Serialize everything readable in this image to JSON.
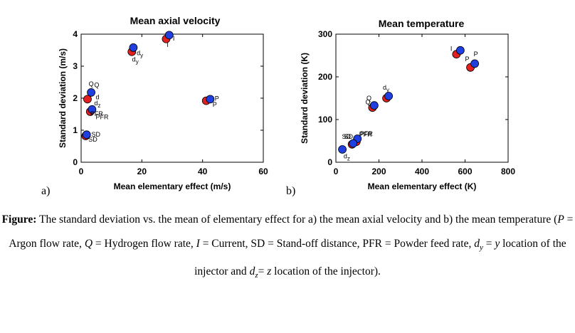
{
  "chart_data": [
    {
      "type": "scatter",
      "panel": "a)",
      "title": "Mean axial velocity",
      "xlabel": "Mean elementary effect (m/s)",
      "ylabel": "Standard deviation (m/s)",
      "xlim": [
        0,
        60
      ],
      "ylim": [
        0,
        4
      ],
      "xticks": [
        0,
        20,
        40,
        60
      ],
      "yticks": [
        0,
        1,
        2,
        3,
        4
      ],
      "grid": false,
      "series": [
        {
          "color": "#e32020",
          "points": [
            {
              "label": "d",
              "x": 16.7,
              "y": 3.45
            },
            {
              "label": "I",
              "x": 28.0,
              "y": 3.85
            },
            {
              "label": "P",
              "x": 41.2,
              "y": 1.92
            },
            {
              "label": "Q",
              "x": 2.1,
              "y": 1.97
            },
            {
              "label": "PFR",
              "x": 3.0,
              "y": 1.58
            },
            {
              "label": "SD",
              "x": 1.5,
              "y": 0.82
            }
          ]
        },
        {
          "color": "#1f3fe0",
          "points": [
            {
              "label": "d",
              "x": 17.2,
              "y": 3.58
            },
            {
              "label": "I",
              "x": 29.0,
              "y": 3.97
            },
            {
              "label": "P",
              "x": 42.5,
              "y": 1.97
            },
            {
              "label": "Q",
              "x": 3.3,
              "y": 2.18
            },
            {
              "label": "dz",
              "x": 3.6,
              "y": 1.65
            },
            {
              "label": "SD",
              "x": 1.8,
              "y": 0.86
            }
          ]
        }
      ],
      "point_labels": [
        {
          "text": "Q",
          "x": 2.5,
          "y": 2.38
        },
        {
          "text": "Q",
          "x": 4.3,
          "y": 2.35
        },
        {
          "text": "d",
          "x": 4.8,
          "y": 1.97
        },
        {
          "text": "dz",
          "x": 4.3,
          "y": 1.78
        },
        {
          "text": "dy",
          "x": 18.3,
          "y": 3.35
        },
        {
          "text": "dy",
          "x": 16.8,
          "y": 3.15
        },
        {
          "text": "I",
          "x": 30.2,
          "y": 3.8
        },
        {
          "text": "I",
          "x": 28.2,
          "y": 3.6
        },
        {
          "text": "P",
          "x": 44.0,
          "y": 1.92
        },
        {
          "text": "P",
          "x": 43.3,
          "y": 1.73
        },
        {
          "text": "PFR",
          "x": 3.0,
          "y": 1.45
        },
        {
          "text": "PFR",
          "x": 4.8,
          "y": 1.35
        },
        {
          "text": "SD",
          "x": 3.4,
          "y": 0.8
        },
        {
          "text": "SD",
          "x": 2.4,
          "y": 0.64
        }
      ]
    },
    {
      "type": "scatter",
      "panel": "b)",
      "title": "Mean temperature",
      "xlabel": "Mean elementary effect (K)",
      "ylabel": "Standard deviation (K)",
      "xlim": [
        0,
        800
      ],
      "ylim": [
        0,
        300
      ],
      "xticks": [
        0,
        200,
        400,
        600,
        800
      ],
      "yticks": [
        0,
        100,
        200,
        300
      ],
      "grid": false,
      "series": [
        {
          "color": "#e32020",
          "points": [
            {
              "label": "I",
              "x": 560,
              "y": 253
            },
            {
              "label": "P",
              "x": 625,
              "y": 222
            },
            {
              "label": "d",
              "x": 235,
              "y": 150
            },
            {
              "label": "Q",
              "x": 170,
              "y": 128
            },
            {
              "label": "PFR",
              "x": 95,
              "y": 48
            },
            {
              "label": "SD",
              "x": 75,
              "y": 42
            }
          ]
        },
        {
          "color": "#1f3fe0",
          "points": [
            {
              "label": "I",
              "x": 578,
              "y": 262
            },
            {
              "label": "P",
              "x": 645,
              "y": 231
            },
            {
              "label": "d",
              "x": 245,
              "y": 155
            },
            {
              "label": "Q",
              "x": 178,
              "y": 133
            },
            {
              "label": "PFR",
              "x": 100,
              "y": 55
            },
            {
              "label": "SD",
              "x": 80,
              "y": 44
            },
            {
              "label": "dz",
              "x": 30,
              "y": 30
            }
          ]
        }
      ],
      "point_labels": [
        {
          "text": "I",
          "x": 532,
          "y": 261
        },
        {
          "text": "P",
          "x": 640,
          "y": 248
        },
        {
          "text": "P",
          "x": 600,
          "y": 237
        },
        {
          "text": "dy",
          "x": 218,
          "y": 170
        },
        {
          "text": "Q",
          "x": 142,
          "y": 145
        },
        {
          "text": "Q",
          "x": 137,
          "y": 136
        },
        {
          "text": "PFR",
          "x": 112,
          "y": 62
        },
        {
          "text": "PFR",
          "x": 108,
          "y": 60
        },
        {
          "text": "SD",
          "x": 28,
          "y": 55
        },
        {
          "text": "SD",
          "x": 38,
          "y": 55
        },
        {
          "text": "dz",
          "x": 36,
          "y": 9
        }
      ]
    }
  ],
  "caption": {
    "parts": [
      {
        "t": "Figure:",
        "bold": true
      },
      {
        "t": " The standard deviation vs. the mean of elementary effect for a) the mean axial velocity and b) the mean temperature ("
      },
      {
        "t": "P",
        "italic": true
      },
      {
        "t": " = Argon flow rate, "
      },
      {
        "t": "Q",
        "italic": true
      },
      {
        "t": " = Hydrogen flow rate, "
      },
      {
        "t": "I",
        "italic": true
      },
      {
        "t": " = Current, SD = Stand-off distance, PFR = Powder feed rate, "
      },
      {
        "t": "d",
        "italic": true
      },
      {
        "t": "y",
        "italic": true,
        "sub": true
      },
      {
        "t": " = "
      },
      {
        "t": "y",
        "italic": true
      },
      {
        "t": " location of the injector and "
      },
      {
        "t": "d",
        "italic": true
      },
      {
        "t": "z",
        "italic": true,
        "sub": true
      },
      {
        "t": "= "
      },
      {
        "t": "z",
        "italic": true
      },
      {
        "t": " location of the injector)."
      }
    ]
  }
}
